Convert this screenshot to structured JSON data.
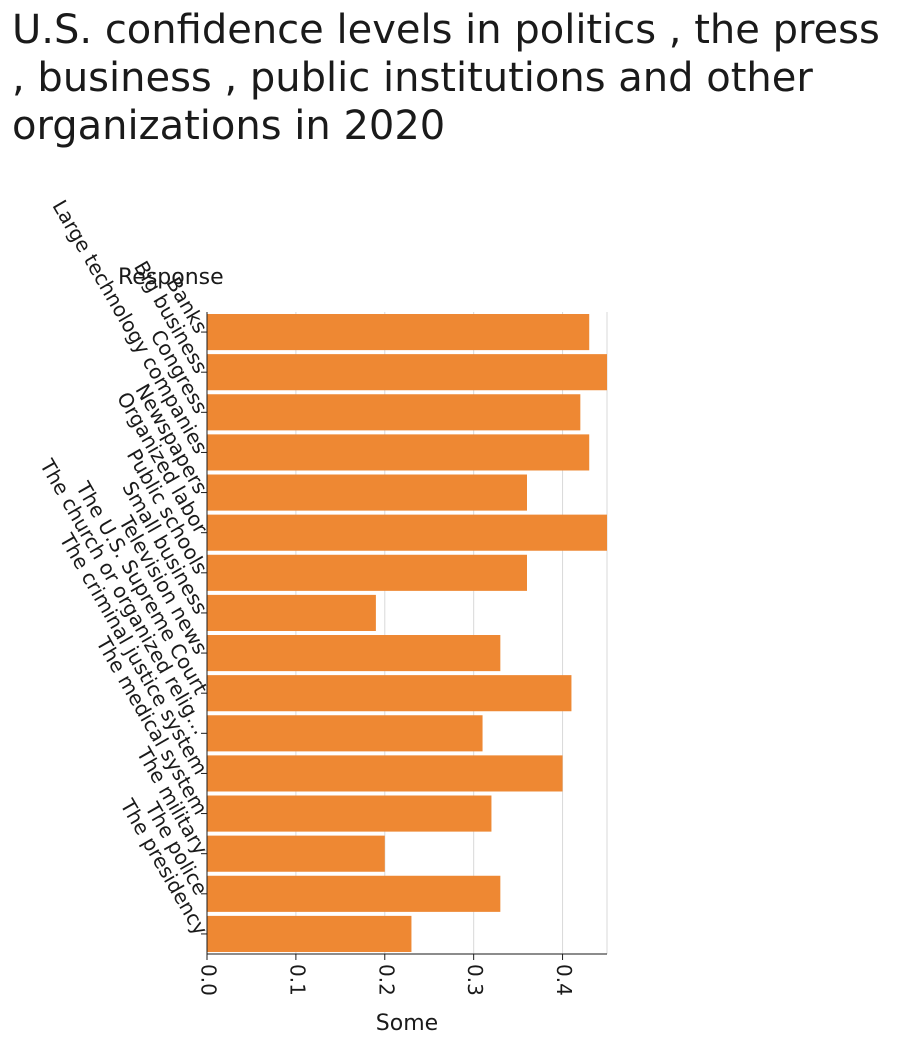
{
  "chart_data": {
    "type": "bar",
    "orientation": "horizontal",
    "title": "U.S. confidence levels in politics , the press , business , public institutions and other organizations in 2020",
    "ylabel": "Response",
    "xlabel": "Some",
    "categories": [
      "Banks",
      "Big business",
      "Congress",
      "Large technology companies",
      "Newspapers",
      "Organized labor",
      "Public schools",
      "Small business",
      "Television news",
      "The U.S. Supreme Court",
      "The church or organized relig…",
      "The criminal justice system",
      "The medical system",
      "The military",
      "The police",
      "The presidency"
    ],
    "values": [
      0.43,
      0.45,
      0.42,
      0.43,
      0.36,
      0.45,
      0.36,
      0.19,
      0.33,
      0.41,
      0.31,
      0.4,
      0.32,
      0.2,
      0.33,
      0.23
    ],
    "xlim": [
      0,
      0.45
    ],
    "xticks": [
      "0.0",
      "0.1",
      "0.2",
      "0.3",
      "0.4"
    ],
    "grid": true,
    "bar_color": "#ee8833",
    "grid_color": "#d9d9d9",
    "axis_color": "#1a1a1a"
  }
}
